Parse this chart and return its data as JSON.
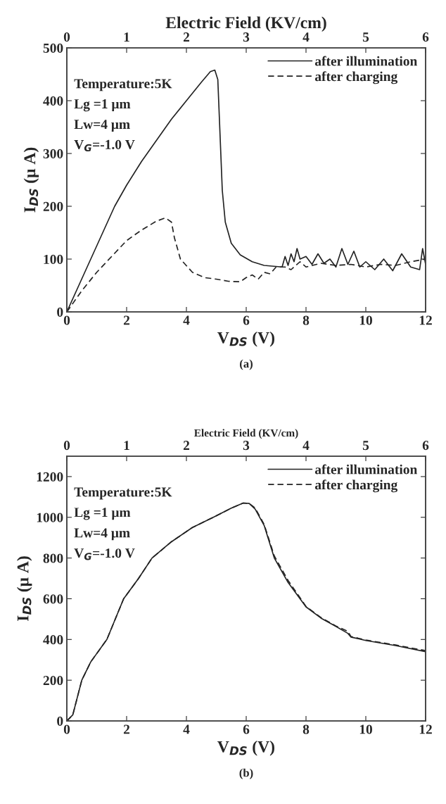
{
  "chart_data": [
    {
      "type": "line",
      "xlabel": "V$_{DS}$ (V)",
      "ylabel": "I$_{DS}$ (μ A)",
      "x2label": "Electric Field (KV/cm)",
      "xlim": [
        0,
        12
      ],
      "xticks": [
        0,
        2,
        4,
        6,
        8,
        10,
        12
      ],
      "ylim": [
        0,
        500
      ],
      "yticks": [
        0,
        100,
        200,
        300,
        400,
        500
      ],
      "x2lim": [
        0,
        6
      ],
      "x2ticks": [
        0,
        1,
        2,
        3,
        4,
        5,
        6
      ],
      "grid": false,
      "legend": "top right",
      "marker": "none",
      "annotations": [
        "Temperature:5K",
        "Lg =1 μm",
        "Lw=4 μm",
        "V$_{G}$=-1.0 V",
        "(a)"
      ],
      "series": [
        {
          "name": "after illumination",
          "color": "#222222",
          "line_style": "solid",
          "x": [
            0,
            0.4,
            0.8,
            1.6,
            2,
            2.5,
            3,
            3.5,
            4,
            4.5,
            4.8,
            4.95,
            5.05,
            5.15,
            5.2,
            5.3,
            5.5,
            5.8,
            6.2,
            6.6,
            7,
            7.2,
            7.3,
            7.4,
            7.5,
            7.6,
            7.7,
            7.8,
            8,
            8.2,
            8.4,
            8.6,
            8.8,
            9,
            9.2,
            9.4,
            9.6,
            9.8,
            10,
            10.3,
            10.6,
            10.9,
            11.2,
            11.5,
            11.8,
            11.9,
            12
          ],
          "values": [
            0,
            50,
            100,
            200,
            240,
            285,
            325,
            365,
            400,
            435,
            455,
            458,
            440,
            300,
            230,
            170,
            130,
            108,
            95,
            88,
            86,
            85,
            105,
            88,
            110,
            95,
            120,
            100,
            105,
            90,
            110,
            92,
            100,
            85,
            120,
            90,
            115,
            85,
            95,
            80,
            100,
            78,
            110,
            85,
            80,
            120,
            90
          ]
        },
        {
          "name": "after charging",
          "color": "#222222",
          "line_style": "dashed",
          "x": [
            0,
            0.5,
            1,
            1.5,
            2,
            2.5,
            3,
            3.3,
            3.5,
            3.6,
            3.8,
            4.2,
            4.6,
            5,
            5.4,
            5.8,
            6,
            6.2,
            6.4,
            6.6,
            6.8,
            7,
            7.3,
            7.5,
            7.8,
            8,
            8.5,
            9,
            9.5,
            10,
            10.5,
            11,
            11.5,
            12
          ],
          "values": [
            0,
            40,
            75,
            105,
            135,
            155,
            172,
            178,
            170,
            140,
            100,
            75,
            65,
            62,
            58,
            57,
            65,
            70,
            62,
            75,
            72,
            85,
            85,
            80,
            95,
            85,
            92,
            88,
            90,
            85,
            90,
            88,
            95,
            100
          ]
        }
      ]
    },
    {
      "type": "line",
      "xlabel": "V$_{DS}$ (V)",
      "ylabel": "I$_{DS}$ (μ A)",
      "x2label": "Electric Field (KV/cm)",
      "xlim": [
        0,
        12
      ],
      "xticks": [
        0,
        2,
        4,
        6,
        8,
        10,
        12
      ],
      "ylim": [
        0,
        1300
      ],
      "yticks": [
        0,
        200,
        400,
        600,
        800,
        1000,
        1200
      ],
      "x2lim": [
        0,
        6
      ],
      "x2ticks": [
        0,
        1,
        2,
        3,
        4,
        5,
        6
      ],
      "grid": false,
      "legend": "top right",
      "marker": "none",
      "annotations": [
        "Temperature:5K",
        "Lg =1 μm",
        "Lw=4 μm",
        "V$_{G}$=-1.0 V",
        "(b)"
      ],
      "series": [
        {
          "name": "after illumination",
          "color": "#222222",
          "line_style": "solid",
          "x": [
            0,
            0.2,
            0.5,
            0.8,
            1.34,
            1.9,
            2.4,
            2.85,
            3.5,
            4.2,
            4.9,
            5.5,
            5.9,
            6.1,
            6.3,
            6.6,
            6.94,
            7.4,
            7.8,
            8,
            8.5,
            9,
            9.4,
            9.5,
            10,
            11,
            12
          ],
          "values": [
            0,
            30,
            200,
            290,
            400,
            600,
            700,
            800,
            880,
            950,
            1000,
            1045,
            1070,
            1068,
            1040,
            960,
            800,
            680,
            600,
            560,
            505,
            464,
            430,
            412,
            395,
            370,
            340
          ]
        },
        {
          "name": "after charging",
          "color": "#222222",
          "line_style": "dashed",
          "x": [
            0,
            0.2,
            0.5,
            0.8,
            1.34,
            1.9,
            2.4,
            2.85,
            3.5,
            4.2,
            4.9,
            5.5,
            5.9,
            6.1,
            6.3,
            6.6,
            6.94,
            7.4,
            7.8,
            8,
            8.5,
            9,
            9.4,
            9.5,
            10,
            11,
            12
          ],
          "values": [
            0,
            30,
            200,
            290,
            400,
            600,
            700,
            800,
            880,
            950,
            1000,
            1045,
            1070,
            1068,
            1045,
            965,
            810,
            690,
            605,
            562,
            508,
            466,
            440,
            415,
            397,
            373,
            345
          ]
        }
      ]
    }
  ]
}
